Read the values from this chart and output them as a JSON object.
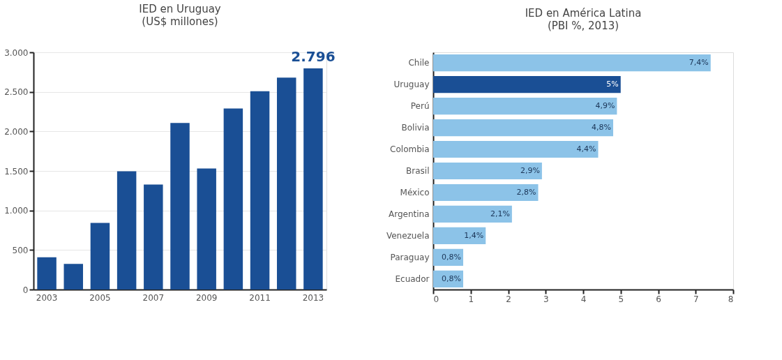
{
  "chart_data": [
    {
      "type": "bar",
      "title": "IED en Uruguay",
      "subtitle": "(US$ millones)",
      "categories": [
        "2003",
        null,
        "2005",
        null,
        "2007",
        null,
        "2009",
        null,
        "2011",
        null,
        "2013"
      ],
      "values": [
        407,
        325,
        842,
        1496,
        1327,
        2106,
        1531,
        2289,
        2507,
        2681,
        2796
      ],
      "color": "#1a4f95",
      "value_labels": [
        null,
        null,
        null,
        null,
        null,
        null,
        null,
        null,
        null,
        null,
        "2.796"
      ],
      "ylim": [
        0,
        3000
      ],
      "yticks": [
        0,
        500,
        {
          "value": 1000,
          "label": "1.000"
        },
        {
          "value": 1500,
          "label": "1.500"
        },
        {
          "value": 2000,
          "label": "2.000"
        },
        {
          "value": 2500,
          "label": "2.500"
        },
        {
          "value": 3000,
          "label": "3.000"
        }
      ],
      "grid": "y"
    },
    {
      "type": "bar",
      "orientation": "horizontal",
      "title": "IED en América Latina",
      "subtitle": "(PBI %, 2013)",
      "categories": [
        "Chile",
        "Uruguay",
        "Perú",
        "Bolivia",
        "Colombia",
        "Brasil",
        "México",
        "Argentina",
        "Venezuela",
        "Paraguay",
        "Ecuador"
      ],
      "values": [
        7.4,
        5,
        4.9,
        4.8,
        4.4,
        2.9,
        2.8,
        2.1,
        1.4,
        0.8,
        0.8
      ],
      "colors": [
        "#8cc3e8",
        "#1a4f95",
        "#8cc3e8",
        "#8cc3e8",
        "#8cc3e8",
        "#8cc3e8",
        "#8cc3e8",
        "#8cc3e8",
        "#8cc3e8",
        "#8cc3e8",
        "#8cc3e8"
      ],
      "value_labels": [
        "7,4%",
        "5%",
        "4,9%",
        "4,8%",
        "4,4%",
        "2,9%",
        "2,8%",
        "2,1%",
        "1,4%",
        "0,8%",
        "0,8%"
      ],
      "xlim": [
        0,
        8
      ],
      "xticks": [
        0,
        1,
        2,
        3,
        4,
        5,
        6,
        7,
        8
      ],
      "grid": false
    }
  ]
}
